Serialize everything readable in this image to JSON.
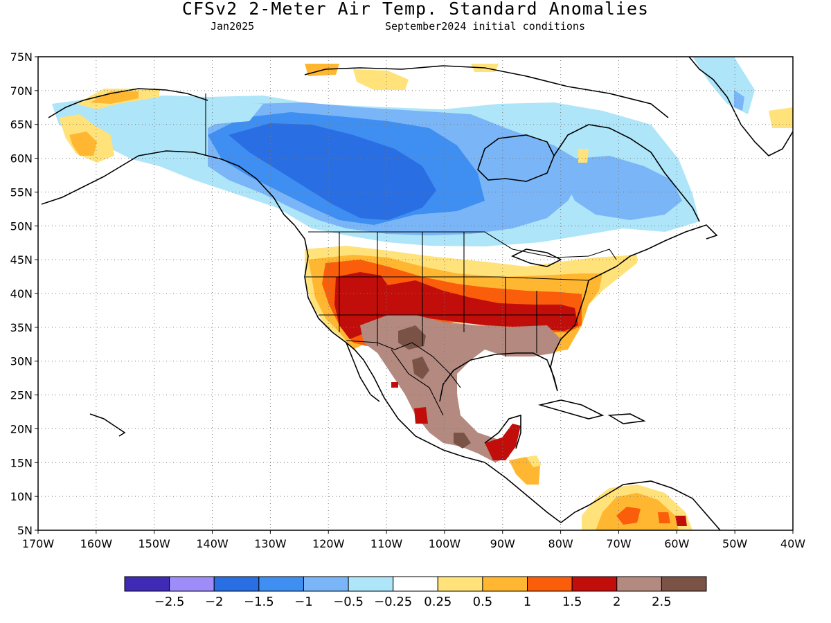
{
  "title": "CFSv2 2-Meter Air Temp. Standard Anomalies",
  "subtitle_left": "Jan2025",
  "subtitle_right": "September2024 initial conditions",
  "lat_labels": [
    "75N",
    "70N",
    "65N",
    "60N",
    "55N",
    "50N",
    "45N",
    "40N",
    "35N",
    "30N",
    "25N",
    "20N",
    "15N",
    "10N",
    "5N"
  ],
  "lon_labels": [
    "170W",
    "160W",
    "150W",
    "140W",
    "130W",
    "120W",
    "110W",
    "100W",
    "90W",
    "80W",
    "70W",
    "60W",
    "50W",
    "40W"
  ],
  "legend": {
    "colors": [
      "#3f2ab6",
      "#9e8cf8",
      "#2a6ee3",
      "#3f8ff2",
      "#7ab6f7",
      "#aee5f9",
      "#ffffff",
      "#ffe27a",
      "#ffb732",
      "#fa5e0a",
      "#c20e0b",
      "#b48a80",
      "#7a5346"
    ],
    "labels": [
      "-2.5",
      "-2",
      "-1.5",
      "-1",
      "-0.5",
      "-0.25",
      "0.25",
      "0.5",
      "1",
      "1.5",
      "2",
      "2.5"
    ]
  }
}
